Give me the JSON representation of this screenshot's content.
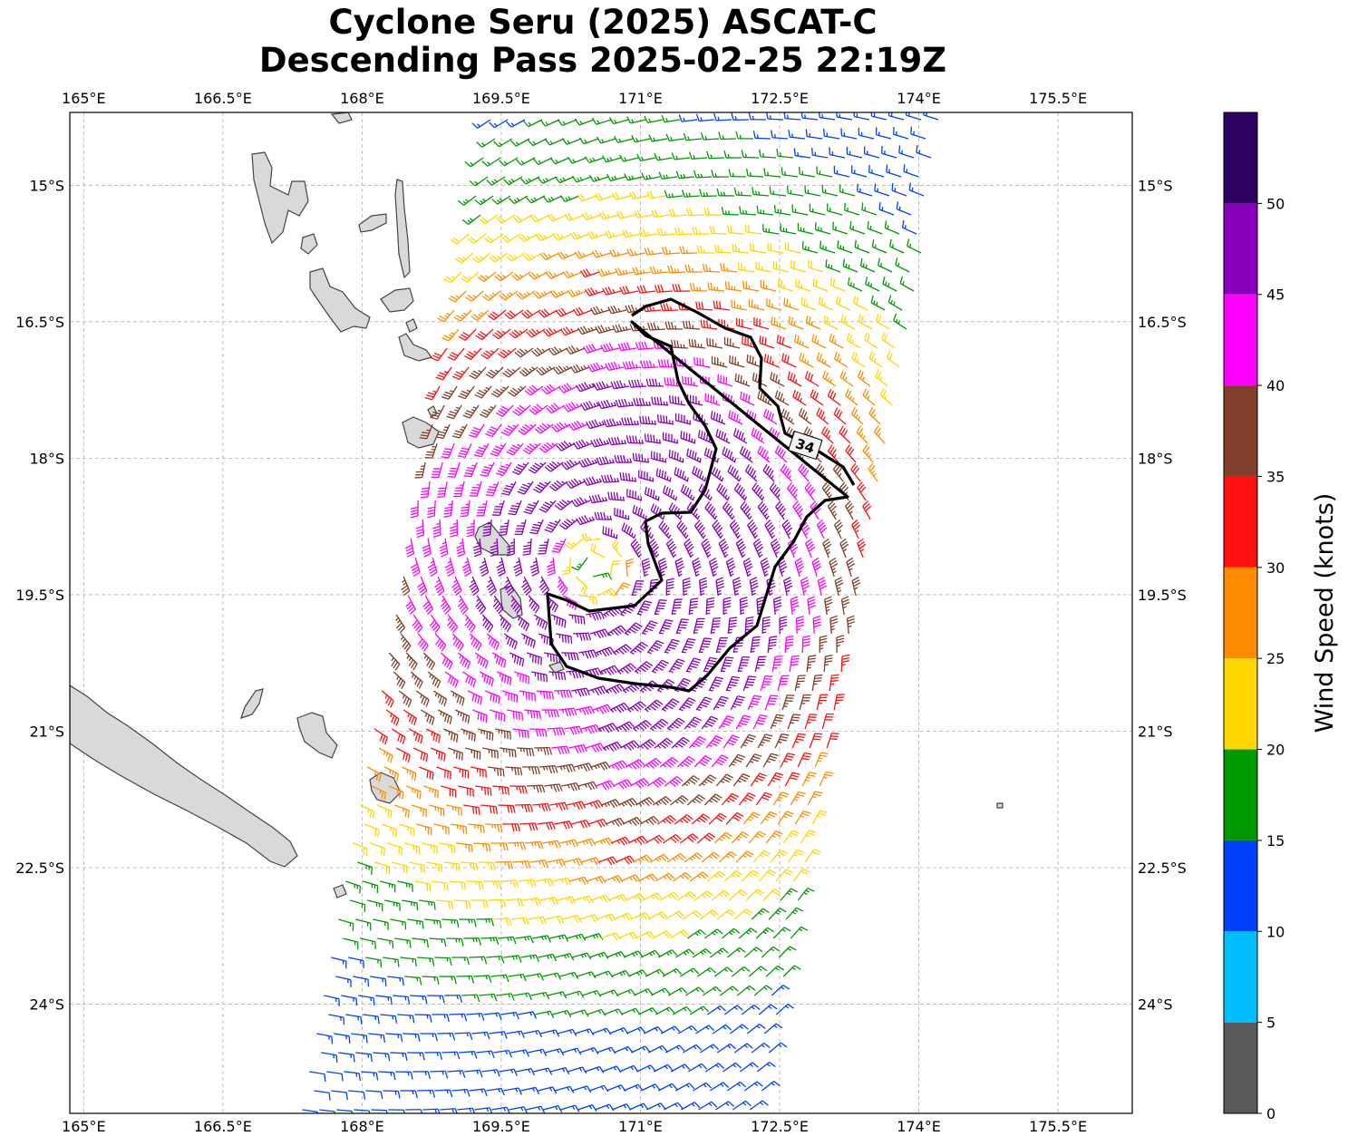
{
  "title_line1": "Cyclone Seru (2025) ASCAT-C",
  "title_line2": "Descending Pass 2025-02-25 22:19Z",
  "map": {
    "lon_range": [
      164.85,
      176.3
    ],
    "lat_range": [
      -25.2,
      -14.2
    ],
    "lon_ticks": [
      "165°E",
      "166.5°E",
      "168°E",
      "169.5°E",
      "171°E",
      "172.5°E",
      "174°E",
      "175.5°E"
    ],
    "lat_ticks": [
      "15°S",
      "16.5°S",
      "18°S",
      "19.5°S",
      "21°S",
      "22.5°S",
      "24°S"
    ],
    "gridlines": true,
    "land_color": "#d9d9d9",
    "coast_color": "#444444"
  },
  "storm": {
    "center_lon": 170.5,
    "center_lat": -19.2,
    "contour_label": "34",
    "contour_knots": 34
  },
  "colorbar": {
    "label": "Wind Speed (knots)",
    "bins": [
      {
        "from": 0,
        "to": 5,
        "color": "#595959"
      },
      {
        "from": 5,
        "to": 10,
        "color": "#00bfff"
      },
      {
        "from": 10,
        "to": 15,
        "color": "#0040ff"
      },
      {
        "from": 15,
        "to": 20,
        "color": "#009900"
      },
      {
        "from": 20,
        "to": 25,
        "color": "#ffd700"
      },
      {
        "from": 25,
        "to": 30,
        "color": "#ff8c00"
      },
      {
        "from": 30,
        "to": 35,
        "color": "#ff1010"
      },
      {
        "from": 35,
        "to": 40,
        "color": "#7f3f2a"
      },
      {
        "from": 40,
        "to": 45,
        "color": "#ff00ff"
      },
      {
        "from": 45,
        "to": 50,
        "color": "#8800bb"
      },
      {
        "from": 50,
        "to": 55,
        "color": "#2e0060"
      }
    ],
    "tick_labels": [
      "0",
      "5",
      "10",
      "15",
      "20",
      "25",
      "30",
      "35",
      "40",
      "45",
      "50"
    ]
  }
}
